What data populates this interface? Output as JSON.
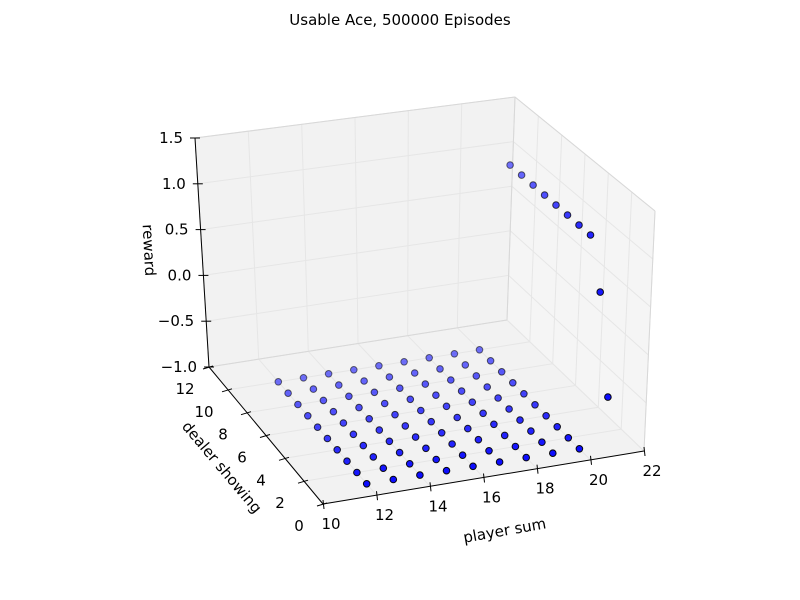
{
  "chart_data": {
    "type": "scatter",
    "title": "Usable Ace, 500000 Episodes",
    "xlabel": "player sum",
    "ylabel": "dealer showing",
    "zlabel": "reward",
    "xlim": [
      10,
      22
    ],
    "ylim": [
      0,
      12
    ],
    "zlim": [
      -1.0,
      1.5
    ],
    "xticks": [
      10,
      12,
      14,
      16,
      18,
      20,
      22
    ],
    "yticks": [
      0,
      2,
      4,
      6,
      8,
      10,
      12
    ],
    "zticks": [
      -1.0,
      -0.5,
      0.0,
      0.5,
      1.0,
      1.5
    ],
    "xtick_labels": [
      "10",
      "12",
      "14",
      "16",
      "18",
      "20",
      "22"
    ],
    "ytick_labels": [
      "0",
      "2",
      "4",
      "6",
      "8",
      "10",
      "12"
    ],
    "ztick_labels": [
      "−1.0",
      "−0.5",
      "0.0",
      "0.5",
      "1.0",
      "1.5"
    ],
    "grid": true,
    "marker_color": "#0000ff",
    "series": [
      {
        "x": [
          12,
          13,
          14,
          15,
          16,
          17,
          18,
          19,
          20,
          12,
          13,
          14,
          15,
          16,
          17,
          18,
          19,
          20,
          12,
          13,
          14,
          15,
          16,
          17,
          18,
          19,
          20,
          12,
          13,
          14,
          15,
          16,
          17,
          18,
          19,
          20,
          12,
          13,
          14,
          15,
          16,
          17,
          18,
          19,
          20,
          12,
          13,
          14,
          15,
          16,
          17,
          18,
          19,
          20,
          12,
          13,
          14,
          15,
          16,
          17,
          18,
          19,
          20,
          12,
          13,
          14,
          15,
          16,
          17,
          18,
          19,
          20,
          12,
          13,
          14,
          15,
          16,
          17,
          18,
          19,
          20,
          12,
          13,
          14,
          15,
          16,
          17,
          18,
          19,
          20,
          21,
          21,
          21,
          21,
          21,
          21,
          21,
          21,
          21,
          21
        ],
        "y": [
          1,
          1,
          1,
          1,
          1,
          1,
          1,
          1,
          1,
          2,
          2,
          2,
          2,
          2,
          2,
          2,
          2,
          2,
          3,
          3,
          3,
          3,
          3,
          3,
          3,
          3,
          3,
          4,
          4,
          4,
          4,
          4,
          4,
          4,
          4,
          4,
          5,
          5,
          5,
          5,
          5,
          5,
          5,
          5,
          5,
          6,
          6,
          6,
          6,
          6,
          6,
          6,
          6,
          6,
          7,
          7,
          7,
          7,
          7,
          7,
          7,
          7,
          7,
          8,
          8,
          8,
          8,
          8,
          8,
          8,
          8,
          8,
          9,
          9,
          9,
          9,
          9,
          9,
          9,
          9,
          9,
          10,
          10,
          10,
          10,
          10,
          10,
          10,
          10,
          10,
          1,
          2,
          3,
          4,
          5,
          6,
          7,
          8,
          9,
          10
        ],
        "z": [
          -1,
          -1,
          -1,
          -1,
          -1,
          -1,
          -1,
          -1,
          -1,
          -1,
          -1,
          -1,
          -1,
          -1,
          -1,
          -1,
          -1,
          -1,
          -1,
          -1,
          -1,
          -1,
          -1,
          -1,
          -1,
          -1,
          -1,
          -1,
          -1,
          -1,
          -1,
          -1,
          -1,
          -1,
          -1,
          -1,
          -1,
          -1,
          -1,
          -1,
          -1,
          -1,
          -1,
          -1,
          -1,
          -1,
          -1,
          -1,
          -1,
          -1,
          -1,
          -1,
          -1,
          -1,
          -1,
          -1,
          -1,
          -1,
          -1,
          -1,
          -1,
          -1,
          -1,
          -1,
          -1,
          -1,
          -1,
          -1,
          -1,
          -1,
          -1,
          -1,
          -1,
          -1,
          -1,
          -1,
          -1,
          -1,
          -1,
          -1,
          -1,
          -1,
          -1,
          -1,
          -1,
          -1,
          -1,
          -1,
          -1,
          -1,
          -0.5,
          0.5,
          1,
          1,
          1,
          1,
          1,
          1,
          1,
          1
        ]
      }
    ]
  }
}
